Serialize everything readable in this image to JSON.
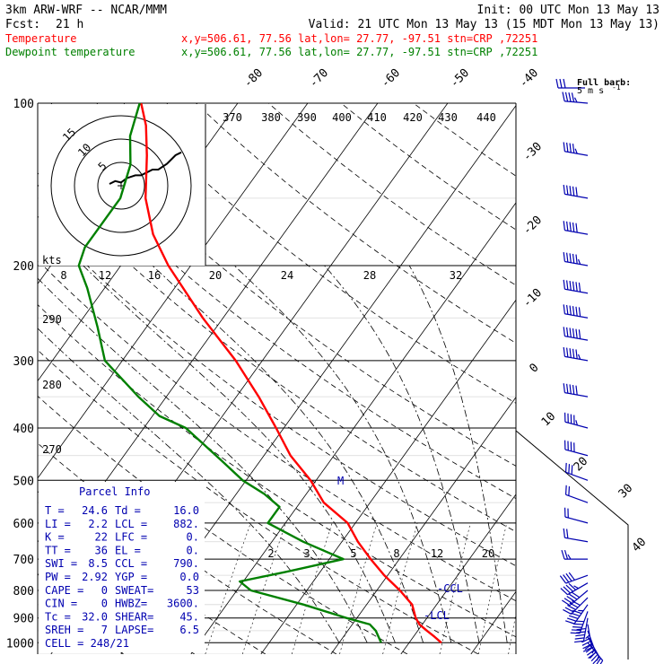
{
  "header": {
    "model": "3km ARW-WRF -- NCAR/MMM",
    "init": "Init: 00 UTC Mon 13 May 13",
    "fcst_label": "Fcst:",
    "fcst_value": "21 h",
    "valid": "Valid: 21 UTC Mon 13 May 13 (15 MDT Mon 13 May 13)"
  },
  "legend": [
    {
      "name": "Temperature",
      "info": "x,y=506.61, 77.56   lat,lon= 27.77, -97.51   stn=CRP ,72251",
      "color": "#ff0000"
    },
    {
      "name": "Dewpoint temperature",
      "info": "x,y=506.61, 77.56   lat,lon= 27.77, -97.51   stn=CRP ,72251",
      "color": "#008000"
    }
  ],
  "barb_legend": {
    "line1": "Full barb:",
    "line2": "5 m s",
    "sup": "-1"
  },
  "hodograph": {
    "ring_labels": [
      "15",
      "10",
      "5"
    ],
    "axis_label": "kts"
  },
  "parcel_info": {
    "title": "Parcel Info",
    "rows": [
      [
        "T  =",
        "24.6",
        "Td =",
        "16.0"
      ],
      [
        "LI =",
        "2.2",
        "LCL =",
        "882."
      ],
      [
        "K  =",
        "22",
        "LFC =",
        "0."
      ],
      [
        "TT =",
        "36",
        "EL  =",
        "0."
      ],
      [
        "SWI =",
        "8.5",
        "CCL =",
        "790."
      ],
      [
        "PW =",
        "2.92",
        "YGP =",
        "0.0"
      ],
      [
        "CAPE =",
        "0",
        "SWEAT=",
        "53"
      ],
      [
        "CIN =",
        "0",
        "HWBZ=",
        "3600."
      ],
      [
        "Tc =",
        "32.0",
        "SHEAR=",
        "45."
      ],
      [
        "SREH =",
        "7",
        "LAPSE=",
        "6.5"
      ],
      [
        "CELL = 248/21",
        "",
        "",
        ""
      ]
    ]
  },
  "annotations": {
    "lcl": "LCL",
    "ccl": "CCL",
    "mark": "M"
  },
  "colors": {
    "temperature": "#ff0000",
    "dewpoint": "#008000",
    "barbs": "#0000b0",
    "grid": "#000000"
  },
  "chart_data": {
    "type": "line",
    "chart": "skew-T log-P sounding",
    "y_axis": {
      "ticks": [
        100,
        200,
        300,
        400,
        500,
        600,
        700,
        800,
        900,
        1000
      ]
    },
    "isotherm_labels": [
      "-80",
      "-70",
      "-60",
      "-50",
      "-40",
      "-30",
      "-20",
      "-10",
      "0",
      "10",
      "20",
      "30",
      "40"
    ],
    "theta_e_labels": [
      "370",
      "380",
      "390",
      "400",
      "410",
      "420",
      "430",
      "440"
    ],
    "theta_labels": [
      "290",
      "280",
      "270"
    ],
    "mixing_ratio_top_labels": [
      "8",
      "12",
      "16",
      "20",
      "24",
      "28",
      "32"
    ],
    "mixing_ratio_low_labels": [
      "2",
      "3",
      "5",
      "8",
      "12",
      "20"
    ],
    "series": [
      {
        "name": "Temperature",
        "color": "#ff0000",
        "points": [
          [
            1000,
            24.6
          ],
          [
            975,
            23.0
          ],
          [
            950,
            21.3
          ],
          [
            925,
            19.6
          ],
          [
            900,
            18.4
          ],
          [
            850,
            16.5
          ],
          [
            800,
            13.3
          ],
          [
            750,
            9.5
          ],
          [
            700,
            5.9
          ],
          [
            650,
            2.3
          ],
          [
            600,
            -1.1
          ],
          [
            550,
            -6.6
          ],
          [
            500,
            -10.8
          ],
          [
            450,
            -16.2
          ],
          [
            400,
            -21.1
          ],
          [
            350,
            -26.8
          ],
          [
            300,
            -33.8
          ],
          [
            250,
            -42.9
          ],
          [
            200,
            -53.2
          ],
          [
            175,
            -58.6
          ],
          [
            150,
            -63.4
          ],
          [
            125,
            -67.6
          ],
          [
            110,
            -70.8
          ],
          [
            100,
            -73.8
          ]
        ]
      },
      {
        "name": "Dewpoint temperature",
        "color": "#008000",
        "points": [
          [
            1000,
            16.0
          ],
          [
            975,
            15.0
          ],
          [
            950,
            14.0
          ],
          [
            925,
            12.5
          ],
          [
            900,
            8.5
          ],
          [
            850,
            1.0
          ],
          [
            800,
            -8.0
          ],
          [
            770,
            -10.5
          ],
          [
            740,
            -5.0
          ],
          [
            700,
            2.0
          ],
          [
            650,
            -5.5
          ],
          [
            600,
            -12.5
          ],
          [
            560,
            -12.5
          ],
          [
            530,
            -16.0
          ],
          [
            500,
            -20.5
          ],
          [
            460,
            -25.5
          ],
          [
            400,
            -34.0
          ],
          [
            380,
            -39.0
          ],
          [
            350,
            -44.0
          ],
          [
            300,
            -52.5
          ],
          [
            260,
            -57.0
          ],
          [
            220,
            -62.5
          ],
          [
            200,
            -66.0
          ],
          [
            185,
            -67.0
          ],
          [
            170,
            -67.0
          ],
          [
            150,
            -67.0
          ],
          [
            130,
            -69.0
          ],
          [
            115,
            -72.0
          ],
          [
            100,
            -74.0
          ]
        ]
      }
    ],
    "hodograph_points": [
      [
        0,
        0
      ],
      [
        4,
        2
      ],
      [
        8,
        1
      ],
      [
        12,
        4
      ],
      [
        18,
        6
      ],
      [
        22,
        6
      ],
      [
        26,
        8
      ],
      [
        30,
        10
      ],
      [
        34,
        10
      ],
      [
        40,
        14
      ],
      [
        46,
        20
      ],
      [
        50,
        22
      ]
    ],
    "wind_barbs": [
      {
        "p": 1000,
        "dir": 140,
        "spd": 5
      },
      {
        "p": 975,
        "dir": 150,
        "spd": 7
      },
      {
        "p": 950,
        "dir": 160,
        "spd": 8
      },
      {
        "p": 925,
        "dir": 170,
        "spd": 9
      },
      {
        "p": 900,
        "dir": 190,
        "spd": 10
      },
      {
        "p": 875,
        "dir": 200,
        "spd": 10
      },
      {
        "p": 850,
        "dir": 215,
        "spd": 11
      },
      {
        "p": 825,
        "dir": 225,
        "spd": 10
      },
      {
        "p": 800,
        "dir": 230,
        "spd": 10
      },
      {
        "p": 775,
        "dir": 240,
        "spd": 9
      },
      {
        "p": 750,
        "dir": 250,
        "spd": 8
      },
      {
        "p": 700,
        "dir": 270,
        "spd": 5
      },
      {
        "p": 650,
        "dir": 280,
        "spd": 4
      },
      {
        "p": 600,
        "dir": 285,
        "spd": 4
      },
      {
        "p": 550,
        "dir": 290,
        "spd": 4
      },
      {
        "p": 500,
        "dir": 290,
        "spd": 6
      },
      {
        "p": 450,
        "dir": 285,
        "spd": 8
      },
      {
        "p": 400,
        "dir": 285,
        "spd": 9
      },
      {
        "p": 350,
        "dir": 280,
        "spd": 10
      },
      {
        "p": 300,
        "dir": 280,
        "spd": 11
      },
      {
        "p": 275,
        "dir": 280,
        "spd": 12
      },
      {
        "p": 250,
        "dir": 280,
        "spd": 12
      },
      {
        "p": 225,
        "dir": 280,
        "spd": 12
      },
      {
        "p": 200,
        "dir": 280,
        "spd": 11
      },
      {
        "p": 175,
        "dir": 280,
        "spd": 10
      },
      {
        "p": 150,
        "dir": 280,
        "spd": 10
      },
      {
        "p": 125,
        "dir": 280,
        "spd": 9
      },
      {
        "p": 100,
        "dir": 275,
        "spd": 9
      }
    ]
  }
}
